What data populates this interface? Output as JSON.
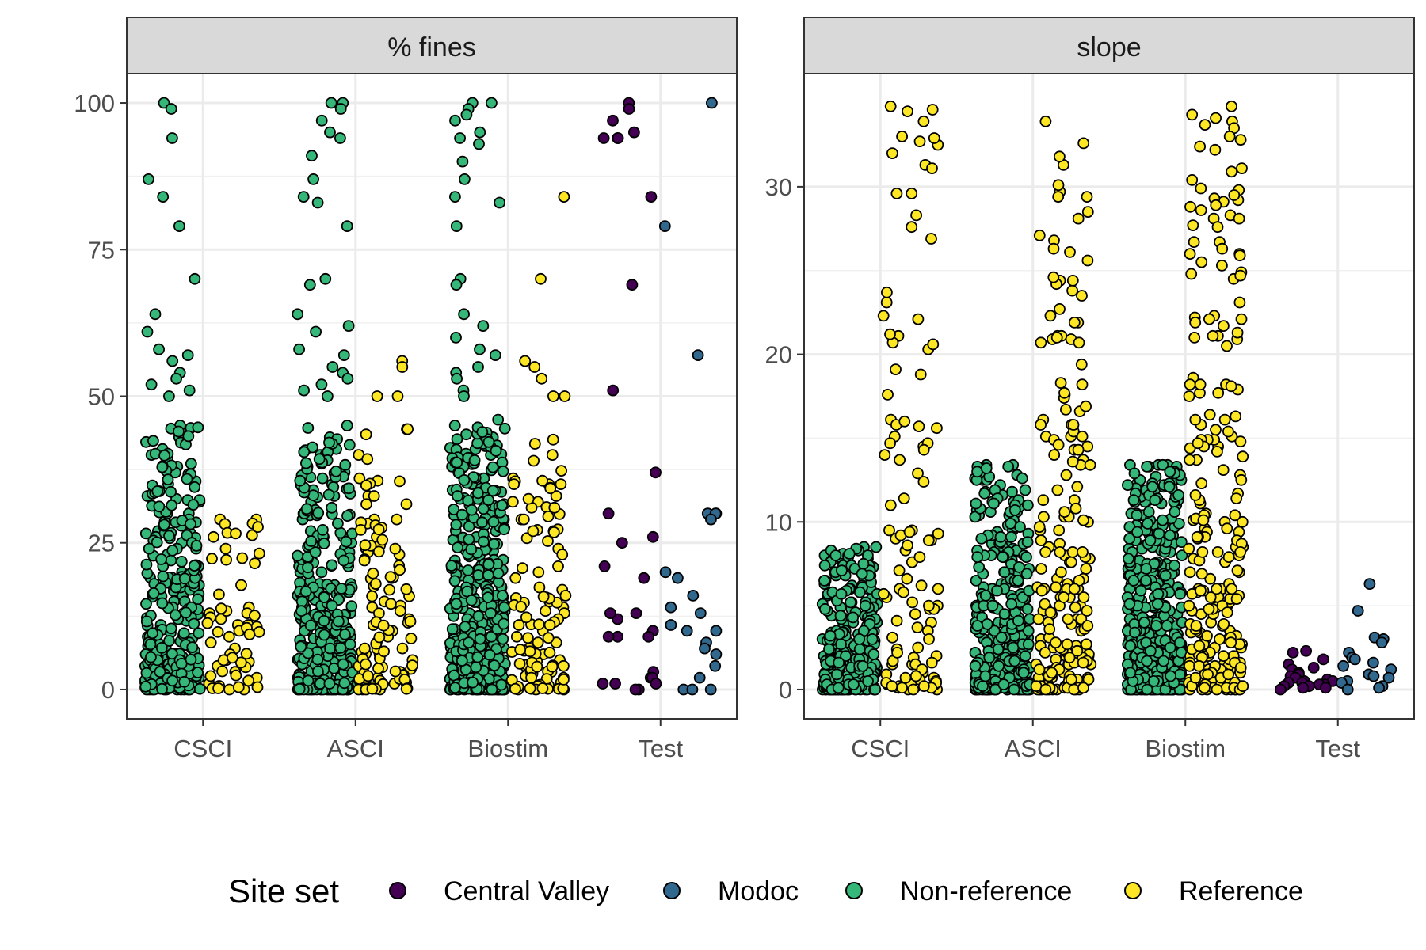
{
  "colors": {
    "Central Valley": "#440154",
    "Modoc": "#31688e",
    "Non-reference": "#35b779",
    "Reference": "#fde725"
  },
  "legend": {
    "title": "Site set",
    "entries": [
      "Central Valley",
      "Modoc",
      "Non-reference",
      "Reference"
    ]
  },
  "chart_data": [
    {
      "type": "scatter",
      "subtype": "jittered strip plot",
      "title": "% fines",
      "categories": [
        "CSCI",
        "ASCI",
        "Biostim",
        "Test"
      ],
      "ylim": [
        -5,
        105
      ],
      "yticks": [
        0,
        25,
        50,
        75,
        100
      ],
      "grid": true,
      "groups": [
        {
          "category": "CSCI",
          "series": [
            {
              "name": "Non-reference",
              "n": 320,
              "values_max": 100,
              "notable": [
                100,
                99,
                94,
                87,
                84,
                79,
                70,
                64,
                61,
                58,
                57,
                56,
                54,
                53,
                52,
                51,
                50,
                45,
                43,
                41,
                40,
                38,
                37,
                36,
                35,
                33,
                32,
                30,
                29,
                27,
                26,
                25,
                24,
                23,
                22,
                21,
                20,
                18,
                16,
                15,
                14,
                13,
                12,
                11,
                10,
                9,
                8,
                7,
                6,
                5,
                4,
                3,
                2,
                1,
                0
              ]
            },
            {
              "name": "Reference",
              "n": 60,
              "values_max": 29,
              "notable": [
                29,
                29,
                14,
                13,
                13,
                12,
                11,
                10,
                9,
                8,
                7,
                6,
                5,
                4,
                3,
                2,
                1,
                0
              ]
            }
          ]
        },
        {
          "category": "ASCI",
          "series": [
            {
              "name": "Non-reference",
              "n": 380,
              "values_max": 100,
              "notable": [
                100,
                100,
                99,
                97,
                95,
                94,
                91,
                87,
                84,
                83,
                79,
                70,
                69,
                64,
                62,
                61,
                58,
                57,
                55,
                54,
                53,
                52,
                51,
                50,
                45,
                43,
                41,
                40,
                38,
                37,
                36,
                35,
                33,
                32,
                30,
                29,
                27,
                26,
                25,
                24,
                22,
                21,
                20,
                18,
                16,
                15,
                14,
                13,
                12,
                11,
                10,
                9,
                8,
                7,
                6,
                5,
                4,
                3,
                2,
                1,
                0
              ]
            },
            {
              "name": "Reference",
              "n": 110,
              "values_max": 56,
              "notable": [
                56,
                55,
                50,
                50,
                40,
                36,
                33,
                33,
                29,
                29,
                26,
                24,
                23,
                19,
                15,
                14,
                13,
                12,
                11,
                10,
                9,
                8,
                7,
                6,
                5,
                4,
                3,
                2,
                1,
                0
              ]
            }
          ]
        },
        {
          "category": "Biostim",
          "series": [
            {
              "name": "Non-reference",
              "n": 480,
              "values_max": 100,
              "notable": [
                100,
                100,
                99,
                98,
                97,
                95,
                94,
                93,
                90,
                87,
                84,
                83,
                79,
                70,
                69,
                64,
                62,
                60,
                58,
                57,
                55,
                54,
                53,
                51,
                50,
                46,
                45,
                43,
                41,
                40,
                38,
                37,
                36,
                35,
                33,
                32,
                30,
                29,
                27,
                26,
                25,
                24,
                22,
                21,
                20,
                18,
                16,
                15,
                14,
                13,
                12,
                11,
                10,
                9,
                8,
                7,
                6,
                5,
                4,
                3,
                2,
                1,
                0
              ]
            },
            {
              "name": "Reference",
              "n": 120,
              "values_max": 84,
              "notable": [
                84,
                70,
                56,
                55,
                53,
                50,
                50,
                40,
                36,
                35,
                33,
                32,
                31,
                29,
                29,
                27,
                24,
                23,
                21,
                20,
                19,
                15,
                14,
                13,
                12,
                11,
                10,
                9,
                8,
                7,
                6,
                5,
                4,
                3,
                2,
                1,
                0
              ]
            }
          ]
        },
        {
          "category": "Test",
          "series": [
            {
              "name": "Central Valley",
              "values": [
                100,
                99,
                97,
                95,
                94,
                94,
                94,
                84,
                69,
                51,
                37,
                30,
                26,
                25,
                21,
                19,
                13,
                12,
                13,
                10,
                9,
                9,
                9,
                3,
                2,
                2,
                1,
                1,
                1,
                0,
                0
              ]
            },
            {
              "name": "Modoc",
              "values": [
                100,
                79,
                57,
                30,
                30,
                30,
                29,
                20,
                19,
                16,
                14,
                13,
                11,
                10,
                10,
                8,
                7,
                6,
                4,
                2,
                0,
                0,
                0
              ]
            }
          ]
        }
      ]
    },
    {
      "type": "scatter",
      "subtype": "jittered strip plot",
      "title": "slope",
      "categories": [
        "CSCI",
        "ASCI",
        "Biostim",
        "Test"
      ],
      "ylim": [
        -1.75,
        36.75
      ],
      "yticks": [
        0,
        10,
        20,
        30
      ],
      "grid": true,
      "groups": [
        {
          "category": "CSCI",
          "series": [
            {
              "name": "Non-reference",
              "n": 320,
              "values_max": 8.5,
              "notable": [
                8.5,
                7.3,
                7.0,
                6.8,
                6.6,
                6.3,
                6.0,
                5.6,
                5.2,
                4.8,
                4.4,
                4.0,
                3.5,
                3.0,
                2.5,
                2.0,
                1.5,
                1.0,
                0.5,
                0.2,
                0.0
              ]
            },
            {
              "name": "Reference",
              "n": 110,
              "values_max": 34.8,
              "notable": [
                34.8,
                33.9,
                22.3,
                21.1,
                16.1,
                15.8,
                15.1,
                14.5,
                14.0,
                13.7,
                8.9,
                7.6,
                7.1,
                6.6,
                6.0,
                5.5,
                5.0,
                4.5,
                4.0,
                3.5,
                3.0,
                2.5,
                2.0,
                1.5,
                1.0
              ]
            }
          ]
        },
        {
          "category": "ASCI",
          "series": [
            {
              "name": "Non-reference",
              "n": 380,
              "values_max": 13.4,
              "notable": [
                13.4,
                13.4,
                12.5,
                8.7,
                8.5,
                8.2,
                7.2,
                7.0,
                6.8,
                6.4,
                6.0,
                5.5,
                5.0,
                4.5,
                4.0,
                3.5,
                3.0,
                2.5,
                2.0,
                1.5,
                1.0,
                0.5,
                0.2,
                0.0
              ]
            },
            {
              "name": "Reference",
              "n": 200,
              "values_max": 33.9,
              "notable": [
                33.9,
                22.3,
                21.1,
                16.1,
                15.8,
                15.1,
                14.5,
                14.3,
                14.0,
                13.7,
                13.4,
                12.8,
                9.5,
                8.9,
                8.0,
                7.6,
                7.2,
                6.6,
                6.0,
                5.5,
                5.0,
                4.5,
                4.0,
                3.5,
                3.0,
                2.5,
                2.0,
                1.5,
                1.0,
                0.5
              ]
            }
          ]
        },
        {
          "category": "Biostim",
          "series": [
            {
              "name": "Non-reference",
              "n": 480,
              "values_max": 13.4,
              "notable": [
                13.4,
                13.4,
                12.5,
                8.7,
                8.5,
                8.3,
                7.5,
                7.2,
                7.0,
                6.8,
                6.4,
                6.0,
                5.5,
                5.0,
                4.5,
                4.0,
                3.5,
                3.0,
                2.5,
                2.0,
                1.5,
                1.0,
                0.5,
                0.2,
                0.0
              ]
            },
            {
              "name": "Reference",
              "n": 240,
              "values_max": 34.8,
              "notable": [
                34.8,
                33.9,
                22.3,
                21.1,
                17.9,
                16.1,
                15.8,
                15.1,
                14.5,
                14.2,
                13.7,
                13.1,
                12.8,
                11.1,
                9.6,
                9.0,
                8.0,
                7.6,
                7.0,
                6.6,
                6.0,
                5.5,
                5.0,
                4.5,
                4.0,
                3.5,
                3.0,
                2.5,
                2.0,
                1.5,
                1.0
              ]
            }
          ]
        },
        {
          "category": "Test",
          "series": [
            {
              "name": "Central Valley",
              "values": [
                2.3,
                2.2,
                1.8,
                1.5,
                1.3,
                1.2,
                1.0,
                0.9,
                0.8,
                0.7,
                0.6,
                0.5,
                0.5,
                0.4,
                0.4,
                0.3,
                0.3,
                0.2,
                0.2,
                0.1,
                0.1,
                0.0
              ]
            },
            {
              "name": "Modoc",
              "values": [
                6.3,
                4.7,
                3.1,
                3.0,
                2.8,
                2.2,
                1.9,
                1.8,
                1.6,
                1.4,
                1.2,
                0.9,
                0.8,
                0.7,
                0.5,
                0.4,
                0.2,
                0.1,
                0.0
              ]
            }
          ]
        }
      ]
    }
  ]
}
